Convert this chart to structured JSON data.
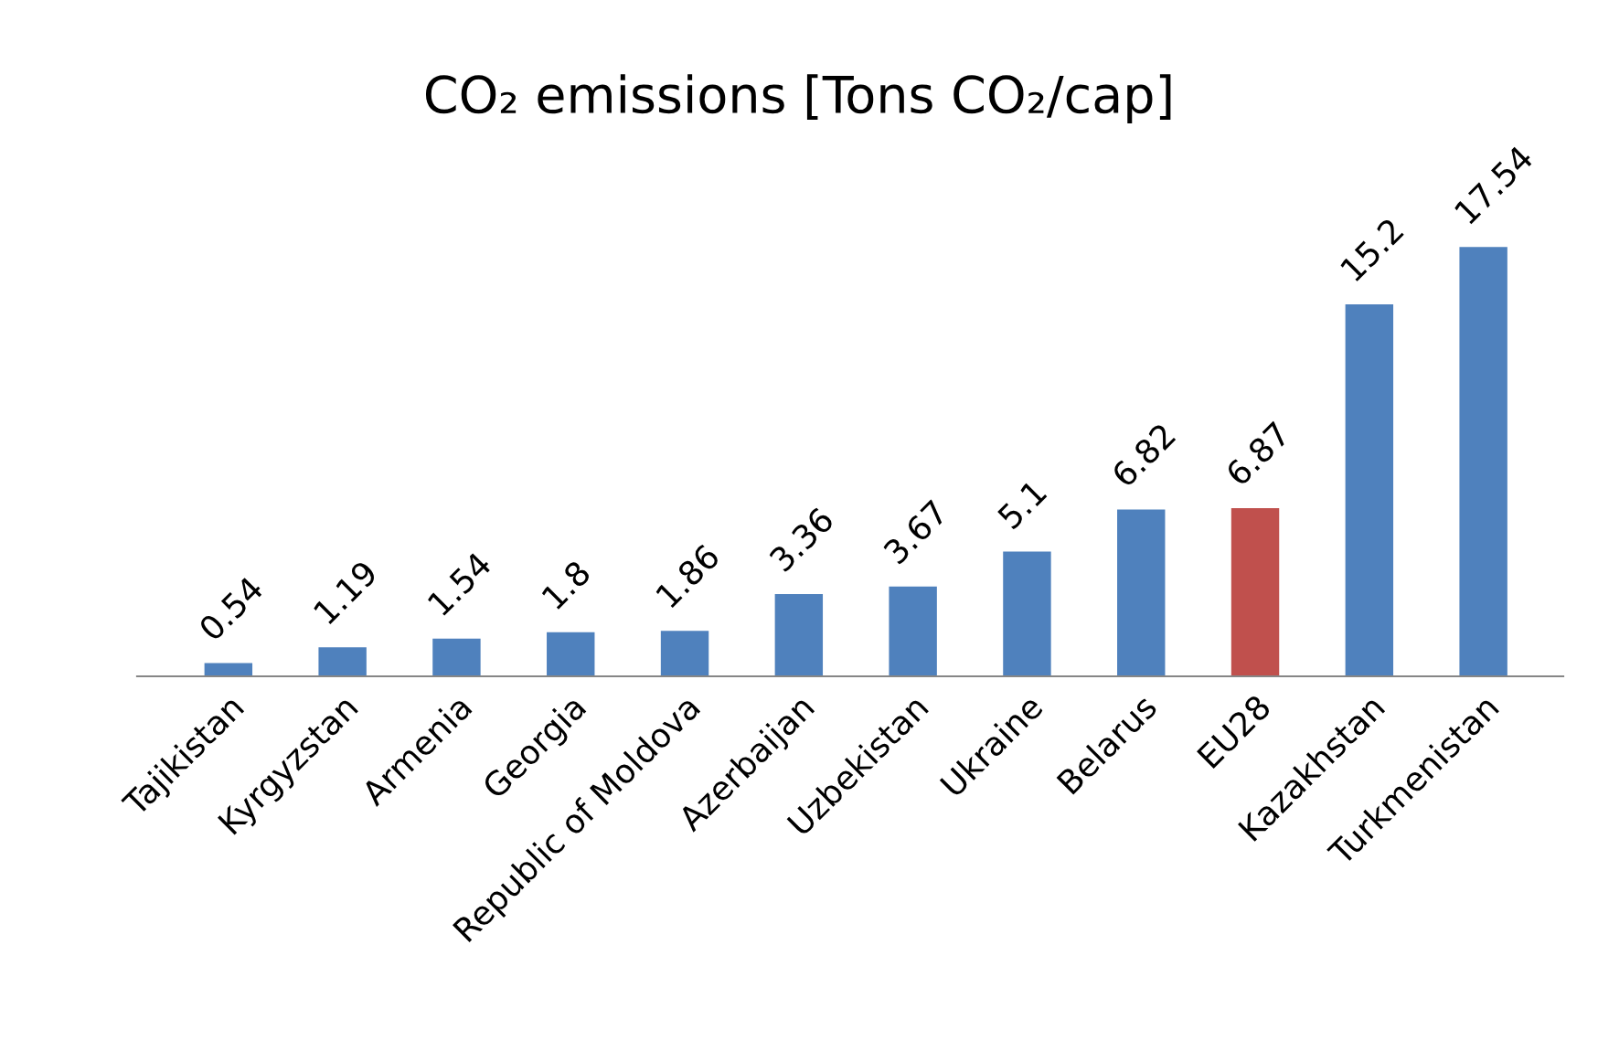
{
  "chart_data": {
    "type": "bar",
    "title": "CO₂ emissions [Tons CO₂/cap]",
    "categories": [
      "Tajikistan",
      "Kyrgyzstan",
      "Armenia",
      "Georgia",
      "Republic of Moldova",
      "Azerbaijan",
      "Uzbekistan",
      "Ukraine",
      "Belarus",
      "EU28",
      "Kazakhstan",
      "Turkmenistan"
    ],
    "values": [
      0.54,
      1.19,
      1.54,
      1.8,
      1.86,
      3.36,
      3.67,
      5.1,
      6.82,
      6.87,
      15.2,
      17.54
    ],
    "colors": [
      "#4f81bd",
      "#4f81bd",
      "#4f81bd",
      "#4f81bd",
      "#4f81bd",
      "#4f81bd",
      "#4f81bd",
      "#4f81bd",
      "#4f81bd",
      "#c0504d",
      "#4f81bd",
      "#4f81bd"
    ],
    "data_labels": true,
    "grid": false,
    "legend": false
  }
}
